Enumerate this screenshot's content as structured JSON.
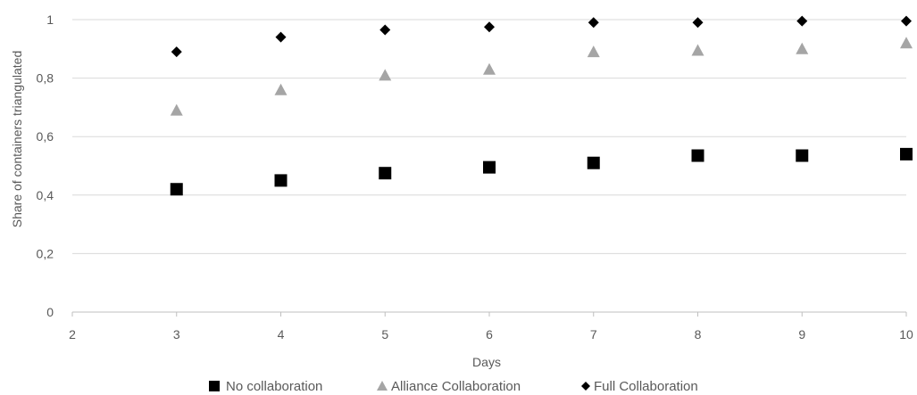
{
  "chart_data": {
    "type": "scatter",
    "title": "",
    "xlabel": "Days",
    "ylabel": "Share of containers triangulated",
    "xlim": [
      2,
      10
    ],
    "ylim": [
      0,
      1
    ],
    "x_ticks": [
      2,
      3,
      4,
      5,
      6,
      7,
      8,
      9,
      10
    ],
    "y_ticks": [
      "0",
      "0,2",
      "0,4",
      "0,6",
      "0,8",
      "1"
    ],
    "y_tick_values": [
      0,
      0.2,
      0.4,
      0.6,
      0.8,
      1.0
    ],
    "grid": "horizontal",
    "legend_position": "bottom",
    "series": [
      {
        "name": "No collaboration",
        "marker": "square",
        "color": "#000000",
        "x": [
          3,
          4,
          5,
          6,
          7,
          8,
          9,
          10
        ],
        "y": [
          0.42,
          0.45,
          0.475,
          0.495,
          0.51,
          0.535,
          0.535,
          0.54
        ]
      },
      {
        "name": "Alliance Collaboration",
        "marker": "triangle",
        "color": "#a5a5a5",
        "x": [
          3,
          4,
          5,
          6,
          7,
          8,
          9,
          10
        ],
        "y": [
          0.69,
          0.76,
          0.81,
          0.83,
          0.89,
          0.895,
          0.9,
          0.92
        ]
      },
      {
        "name": "Full Collaboration",
        "marker": "diamond",
        "color": "#000000",
        "x": [
          3,
          4,
          5,
          6,
          7,
          8,
          9,
          10
        ],
        "y": [
          0.89,
          0.94,
          0.965,
          0.975,
          0.99,
          0.99,
          0.995,
          0.995
        ]
      }
    ]
  }
}
